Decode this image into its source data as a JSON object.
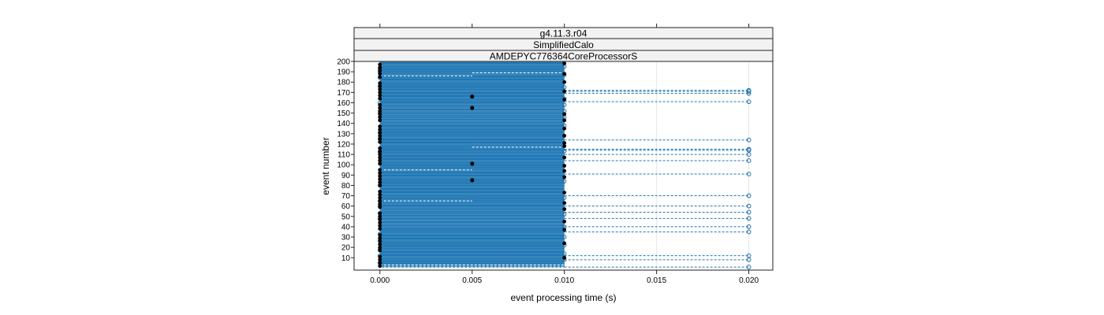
{
  "chart_data": {
    "type": "scatter",
    "strips": [
      "g4.11.3.r04",
      "SimplifiedCalo",
      "AMDEPYC776364CoreProcessorS"
    ],
    "xlabel": "event processing time (s)",
    "ylabel": "event number",
    "xlim": [
      -0.0014,
      0.0213
    ],
    "ylim": [
      -2,
      200
    ],
    "x_ticks": [
      0.0,
      0.005,
      0.01,
      0.015,
      0.02
    ],
    "x_tick_labels": [
      "0.000",
      "0.005",
      "0.010",
      "0.015",
      "0.020"
    ],
    "y_ticks": [
      10,
      20,
      30,
      40,
      50,
      60,
      70,
      80,
      90,
      100,
      110,
      120,
      130,
      140,
      150,
      160,
      170,
      180,
      190,
      200
    ],
    "y_tick_labels": [
      "10",
      "20",
      "30",
      "40",
      "50",
      "60",
      "70",
      "80",
      "90",
      "100",
      "110",
      "120",
      "130",
      "140",
      "150",
      "160",
      "170",
      "180",
      "190",
      "200"
    ],
    "grid": true,
    "colors": {
      "range_line": "#1f77b4",
      "open_point": "#1f6fa8",
      "filled_point": "#000000",
      "strip_bg": "#f2f2f2",
      "gridline": "#e6e6e6"
    },
    "range_events": {
      "x_min": 0.0,
      "x_max": 0.01,
      "from": 1,
      "to": 199
    },
    "outlier_events": [
      {
        "event": 1,
        "time": 0.02
      },
      {
        "event": 8,
        "time": 0.02
      },
      {
        "event": 12,
        "time": 0.02
      },
      {
        "event": 35,
        "time": 0.02
      },
      {
        "event": 40,
        "time": 0.02
      },
      {
        "event": 48,
        "time": 0.02
      },
      {
        "event": 54,
        "time": 0.02
      },
      {
        "event": 60,
        "time": 0.02
      },
      {
        "event": 70,
        "time": 0.02
      },
      {
        "event": 91,
        "time": 0.02
      },
      {
        "event": 104,
        "time": 0.02
      },
      {
        "event": 110,
        "time": 0.02
      },
      {
        "event": 114,
        "time": 0.02
      },
      {
        "event": 115,
        "time": 0.02
      },
      {
        "event": 124,
        "time": 0.02
      },
      {
        "event": 161,
        "time": 0.02
      },
      {
        "event": 169,
        "time": 0.02
      },
      {
        "event": 171,
        "time": 0.02
      },
      {
        "event": 172,
        "time": 0.02
      }
    ],
    "mid_points": [
      {
        "event": 85,
        "time": 0.005
      },
      {
        "event": 101,
        "time": 0.005
      },
      {
        "event": 155,
        "time": 0.005
      },
      {
        "event": 166,
        "time": 0.005
      }
    ],
    "white_dashes": [
      {
        "event": 1,
        "x0": 0.0,
        "x1": 0.01
      },
      {
        "event": 3,
        "x0": 0.0,
        "x1": 0.01
      },
      {
        "event": 65,
        "x0": 0.0,
        "x1": 0.005
      },
      {
        "event": 95,
        "x0": 0.0,
        "x1": 0.005
      },
      {
        "event": 117,
        "x0": 0.005,
        "x1": 0.01
      },
      {
        "event": 186,
        "x0": 0.0,
        "x1": 0.005
      },
      {
        "event": 189,
        "x0": 0.005,
        "x1": 0.01
      }
    ]
  }
}
